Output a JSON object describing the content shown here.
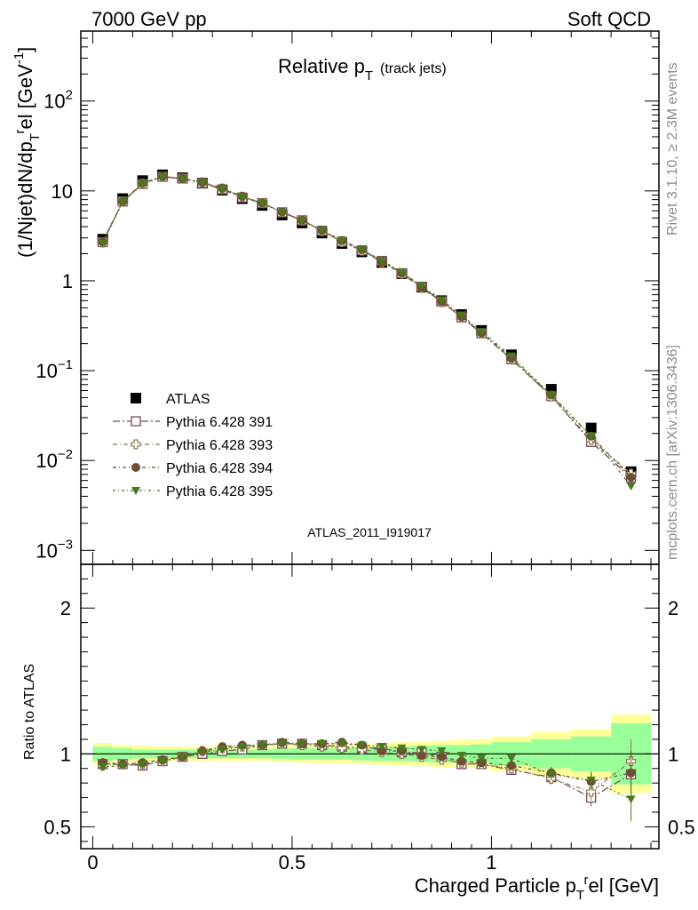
{
  "header": {
    "left": "7000 GeV pp",
    "right": "Soft QCD"
  },
  "plot_title": {
    "main": "Relative p",
    "sub": "T",
    "suffix": "(track jets)"
  },
  "side_labels": {
    "rivet": "Rivet 3.1.10, ≥ 2.3M events",
    "mcplots": "mcplots.cern.ch [arXiv:1306.3436]"
  },
  "analysis_tag": "ATLAS_2011_I919017",
  "axes": {
    "ylabel_main": "(1/Njet)dN/dp",
    "ylabel_sub": "T",
    "ylabel_sup": "r",
    "ylabel_tail": "el [GeV",
    "ylabel_unit_sup": "-1",
    "ylabel_close": "]",
    "ratio_ylabel": "Ratio to ATLAS",
    "xlabel_main": "Charged Particle p",
    "xlabel_sub": "T",
    "xlabel_sup": "r",
    "xlabel_tail": "el [GeV]",
    "main_yticks": [
      {
        "v": 0.001,
        "base": "10",
        "exp": "−3"
      },
      {
        "v": 0.01,
        "base": "10",
        "exp": "−2"
      },
      {
        "v": 0.1,
        "base": "10",
        "exp": "−1"
      },
      {
        "v": 1,
        "base": "1",
        "exp": ""
      },
      {
        "v": 10,
        "base": "10",
        "exp": ""
      },
      {
        "v": 100,
        "base": "10",
        "exp": "2"
      }
    ],
    "ratio_yticks": [
      {
        "v": 0.5,
        "label": "0.5"
      },
      {
        "v": 1,
        "label": "1"
      },
      {
        "v": 2,
        "label": "2"
      }
    ],
    "xticks": [
      {
        "v": 0,
        "label": "0"
      },
      {
        "v": 0.5,
        "label": "0.5"
      },
      {
        "v": 1,
        "label": "1"
      }
    ]
  },
  "chart_data": {
    "type": "scatter",
    "x": [
      0.025,
      0.075,
      0.125,
      0.175,
      0.225,
      0.275,
      0.325,
      0.375,
      0.425,
      0.475,
      0.525,
      0.575,
      0.625,
      0.675,
      0.725,
      0.775,
      0.825,
      0.875,
      0.925,
      0.975,
      1.05,
      1.15,
      1.25,
      1.35
    ],
    "x_edges": [
      0,
      0.05,
      0.1,
      0.15,
      0.2,
      0.25,
      0.3,
      0.35,
      0.4,
      0.45,
      0.5,
      0.55,
      0.6,
      0.65,
      0.7,
      0.75,
      0.8,
      0.85,
      0.9,
      0.95,
      1.0,
      1.1,
      1.2,
      1.3,
      1.4
    ],
    "xlim": [
      -0.03,
      1.42
    ],
    "ylim": [
      0.0007,
      600
    ],
    "yscale": "log",
    "ratio_ylim": [
      0.35,
      2.3
    ],
    "ratio_band_inner": [
      0.05,
      0.04,
      0.03,
      0.03,
      0.03,
      0.03,
      0.03,
      0.03,
      0.03,
      0.035,
      0.04,
      0.04,
      0.04,
      0.045,
      0.05,
      0.05,
      0.055,
      0.06,
      0.06,
      0.065,
      0.08,
      0.1,
      0.12,
      0.21
    ],
    "ratio_band_outer": [
      0.075,
      0.06,
      0.055,
      0.05,
      0.05,
      0.05,
      0.05,
      0.05,
      0.05,
      0.055,
      0.06,
      0.065,
      0.065,
      0.07,
      0.075,
      0.08,
      0.085,
      0.09,
      0.095,
      0.1,
      0.12,
      0.15,
      0.17,
      0.27
    ],
    "reference": {
      "name": "ATLAS",
      "color": "#000000",
      "values": [
        2.9,
        8.2,
        13.0,
        15.1,
        14.0,
        12.2,
        10.2,
        8.2,
        6.9,
        5.4,
        4.4,
        3.4,
        2.6,
        2.1,
        1.6,
        1.2,
        0.85,
        0.6,
        0.42,
        0.28,
        0.15,
        0.062,
        0.023,
        0.0075
      ]
    },
    "series": [
      {
        "name": "Pythia 6.428 391",
        "color": "#7a4a5a",
        "marker": "open-square",
        "dash": "8,3,2,3",
        "ratio": [
          0.93,
          0.93,
          0.92,
          0.95,
          0.98,
          1.0,
          1.02,
          1.03,
          1.06,
          1.07,
          1.07,
          1.06,
          1.05,
          1.04,
          1.04,
          1.01,
          1.01,
          0.98,
          0.93,
          0.93,
          0.89,
          0.84,
          0.7,
          0.86
        ]
      },
      {
        "name": "Pythia 6.428 393",
        "color": "#8a7a4a",
        "marker": "open-cross",
        "dash": "5,3,1,3",
        "ratio": [
          0.92,
          0.93,
          0.93,
          0.95,
          0.98,
          1.02,
          1.04,
          1.05,
          1.06,
          1.07,
          1.06,
          1.05,
          1.04,
          1.03,
          1.01,
          1.0,
          0.98,
          0.96,
          0.94,
          0.93,
          0.9,
          0.83,
          0.74,
          0.95
        ]
      },
      {
        "name": "Pythia 6.428 394",
        "color": "#6e4e32",
        "marker": "filled-circle",
        "dash": "4,3,1,3",
        "ratio": [
          0.94,
          0.93,
          0.94,
          0.96,
          0.98,
          1.02,
          1.05,
          1.06,
          1.06,
          1.08,
          1.07,
          1.07,
          1.08,
          1.06,
          1.02,
          1.02,
          0.99,
          0.98,
          0.95,
          0.94,
          0.92,
          0.87,
          0.81,
          0.87
        ]
      },
      {
        "name": "Pythia 6.428 395",
        "color": "#4a7a1e",
        "marker": "filled-triangle-down",
        "dash": "3,3,1,3",
        "ratio": [
          0.91,
          0.92,
          0.93,
          0.95,
          0.98,
          1.01,
          1.03,
          1.05,
          1.06,
          1.07,
          1.07,
          1.07,
          1.07,
          1.06,
          1.05,
          1.04,
          1.03,
          1.02,
          0.99,
          0.97,
          0.97,
          0.86,
          0.82,
          0.69
        ]
      }
    ]
  }
}
